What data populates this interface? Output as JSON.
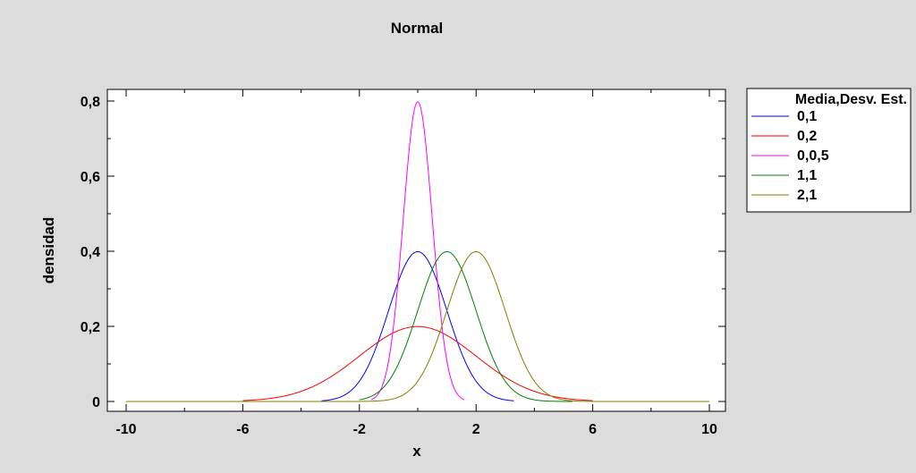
{
  "colors": {
    "background": "#dcdcdc",
    "plot_background": "#ffffff"
  },
  "chart_data": {
    "type": "line",
    "title": "Normal",
    "xlabel": "x",
    "ylabel": "densidad",
    "xlim": [
      -10,
      10
    ],
    "ylim": [
      0,
      0.8
    ],
    "x_ticks": [
      -10,
      -6,
      -2,
      2,
      6,
      10
    ],
    "x_tick_labels": [
      "-10",
      "-6",
      "-2",
      "2",
      "6",
      "10"
    ],
    "y_ticks": [
      0,
      0.2,
      0.4,
      0.6,
      0.8
    ],
    "y_tick_labels": [
      "0",
      "0,2",
      "0,4",
      "0,6",
      "0,8"
    ],
    "grid": false,
    "legend": {
      "title": "Media,Desv. Est.",
      "placement": "right"
    },
    "series": [
      {
        "name": "0,1",
        "mean": 0,
        "sd": 1,
        "x_range": [
          -3.3,
          3.3
        ],
        "color": "#0000ff"
      },
      {
        "name": "0,2",
        "mean": 0,
        "sd": 2,
        "x_range": [
          -6,
          6
        ],
        "color": "#ff0000"
      },
      {
        "name": "0,0,5",
        "mean": 0,
        "sd": 0.5,
        "x_range": [
          -1.6,
          1.6
        ],
        "color": "#ff00ff"
      },
      {
        "name": "1,1",
        "mean": 1,
        "sd": 1,
        "x_range": [
          -2,
          5.3
        ],
        "color": "#008000"
      },
      {
        "name": "2,1",
        "mean": 2,
        "sd": 1,
        "x_range": [
          -10,
          10
        ],
        "color": "#808000"
      }
    ]
  }
}
